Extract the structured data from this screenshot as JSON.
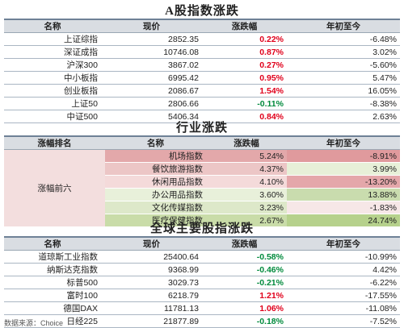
{
  "a_shares": {
    "title": "A股指数涨跌",
    "headers": [
      "名称",
      "现价",
      "涨跌幅",
      "年初至今"
    ],
    "rows": [
      {
        "name": "上证综指",
        "price": "2852.35",
        "change": "0.22%",
        "ytd": "-6.48%",
        "dir": "up"
      },
      {
        "name": "深证成指",
        "price": "10746.08",
        "change": "0.87%",
        "ytd": "3.02%",
        "dir": "up"
      },
      {
        "name": "沪深300",
        "price": "3867.02",
        "change": "0.27%",
        "ytd": "-5.60%",
        "dir": "up"
      },
      {
        "name": "中小板指",
        "price": "6995.42",
        "change": "0.95%",
        "ytd": "5.47%",
        "dir": "up"
      },
      {
        "name": "创业板指",
        "price": "2086.67",
        "change": "1.54%",
        "ytd": "16.05%",
        "dir": "up"
      },
      {
        "name": "上证50",
        "price": "2806.66",
        "change": "-0.11%",
        "ytd": "-8.38%",
        "dir": "down"
      },
      {
        "name": "中证500",
        "price": "5406.34",
        "change": "0.84%",
        "ytd": "2.63%",
        "dir": "up"
      }
    ]
  },
  "industry": {
    "title": "行业涨跌",
    "headers": [
      "涨幅排名",
      "名称",
      "涨跌幅",
      "年初至今"
    ],
    "group_label": "涨幅前六",
    "rows": [
      {
        "name": "机场指数",
        "change": "5.24%",
        "ytd": "-8.91%",
        "bg": "#e3a8aa",
        "ytd_bg": "#e09a9d"
      },
      {
        "name": "餐饮旅游指数",
        "change": "4.37%",
        "ytd": "3.99%",
        "bg": "#ecc6c6",
        "ytd_bg": "#e7f0d8"
      },
      {
        "name": "休闲用品指数",
        "change": "4.10%",
        "ytd": "-13.20%",
        "bg": "#f4dada",
        "ytd_bg": "#e4a7aa"
      },
      {
        "name": "办公用品指数",
        "change": "3.60%",
        "ytd": "13.88%",
        "bg": "#e8f0da",
        "ytd_bg": "#c9dcae"
      },
      {
        "name": "文化传媒指数",
        "change": "3.23%",
        "ytd": "-1.83%",
        "bg": "#dde8c9",
        "ytd_bg": "#f6e7e7"
      },
      {
        "name": "医疗保健指数",
        "change": "2.67%",
        "ytd": "24.74%",
        "bg": "#c9dca8",
        "ytd_bg": "#b6d18c"
      }
    ]
  },
  "global": {
    "title": "全球主要股指涨跌",
    "headers": [
      "名称",
      "现价",
      "涨跌幅",
      "年初至今"
    ],
    "rows": [
      {
        "name": "道琼斯工业指数",
        "price": "25400.64",
        "change": "-0.58%",
        "ytd": "-10.99%",
        "dir": "down"
      },
      {
        "name": "纳斯达克指数",
        "price": "9368.99",
        "change": "-0.46%",
        "ytd": "4.42%",
        "dir": "down"
      },
      {
        "name": "标普500",
        "price": "3029.73",
        "change": "-0.21%",
        "ytd": "-6.22%",
        "dir": "down"
      },
      {
        "name": "富时100",
        "price": "6218.79",
        "change": "1.21%",
        "ytd": "-17.55%",
        "dir": "up"
      },
      {
        "name": "德国DAX",
        "price": "11781.13",
        "change": "1.06%",
        "ytd": "-11.08%",
        "dir": "up"
      },
      {
        "name": "日经225",
        "price": "21877.89",
        "change": "-0.18%",
        "ytd": "-7.52%",
        "dir": "down"
      }
    ]
  },
  "source": "数据来源：Choice",
  "colors": {
    "up": "#e0001b",
    "down": "#008a3c",
    "header_bg": "#d9dde2",
    "group_bg": "#f3dede"
  }
}
